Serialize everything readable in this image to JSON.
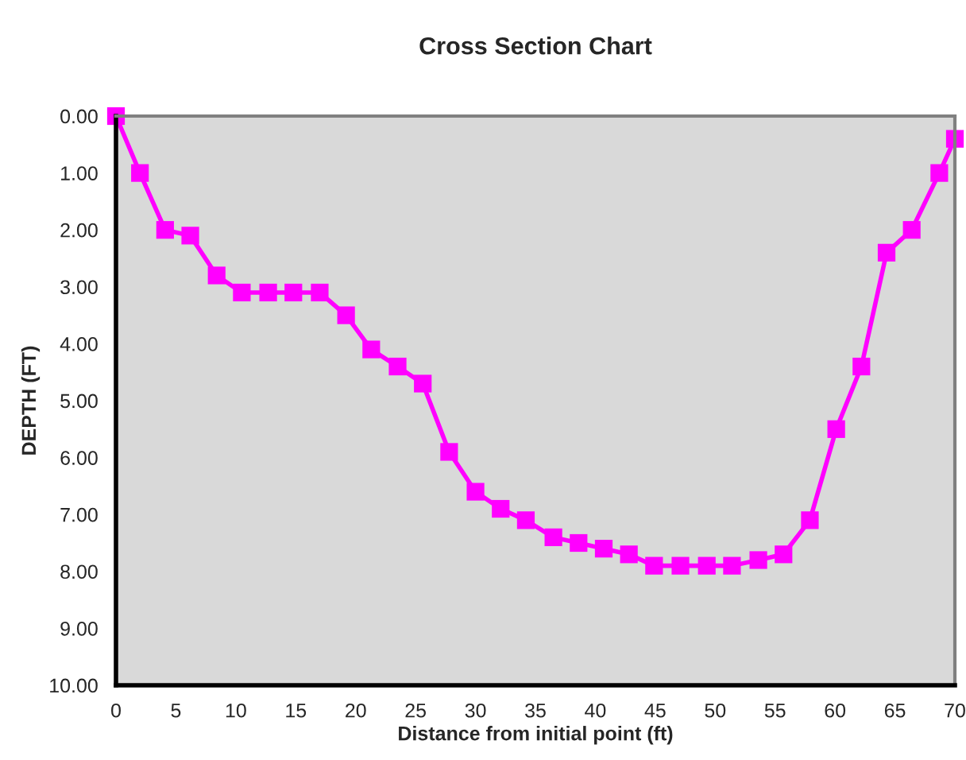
{
  "chart_data": {
    "type": "line",
    "title": "Cross Section Chart",
    "xlabel": "Distance from initial point (ft)",
    "ylabel": "DEPTH (FT)",
    "series": [
      {
        "color": "#ff00ff",
        "x": [
          0,
          2.0,
          4.1,
          6.2,
          8.4,
          10.5,
          12.7,
          14.8,
          17.0,
          19.2,
          21.3,
          23.5,
          25.6,
          27.8,
          30.0,
          32.1,
          34.2,
          36.5,
          38.6,
          40.7,
          42.8,
          44.9,
          47.1,
          49.3,
          51.4,
          53.6,
          55.7,
          57.9,
          60.1,
          62.2,
          64.3,
          66.4,
          68.7,
          70
        ],
        "values": [
          0,
          1.0,
          2.0,
          2.1,
          2.8,
          3.1,
          3.1,
          3.1,
          3.1,
          3.5,
          4.1,
          4.4,
          4.7,
          5.9,
          6.6,
          6.9,
          7.1,
          7.4,
          7.5,
          7.6,
          7.7,
          7.9,
          7.9,
          7.9,
          7.9,
          7.8,
          7.7,
          7.1,
          5.5,
          4.4,
          2.4,
          2.0,
          1.0,
          0.4
        ]
      }
    ],
    "xlim": [
      0,
      70
    ],
    "xticks": [
      0,
      5,
      10,
      15,
      20,
      25,
      30,
      35,
      40,
      45,
      50,
      55,
      60,
      65,
      70
    ],
    "ylim": [
      10,
      0
    ],
    "yticks": [
      {
        "value": 0,
        "label": "0.00"
      },
      {
        "value": 1,
        "label": "1.00"
      },
      {
        "value": 2,
        "label": "2.00"
      },
      {
        "value": 3,
        "label": "3.00"
      },
      {
        "value": 4,
        "label": "4.00"
      },
      {
        "value": 5,
        "label": "5.00"
      },
      {
        "value": 6,
        "label": "6.00"
      },
      {
        "value": 7,
        "label": "7.00"
      },
      {
        "value": 8,
        "label": "8.00"
      },
      {
        "value": 9,
        "label": "9.00"
      },
      {
        "value": 10,
        "label": "10.00"
      }
    ],
    "marker": "square",
    "line_style": "solid",
    "grid": false,
    "legend": false
  }
}
